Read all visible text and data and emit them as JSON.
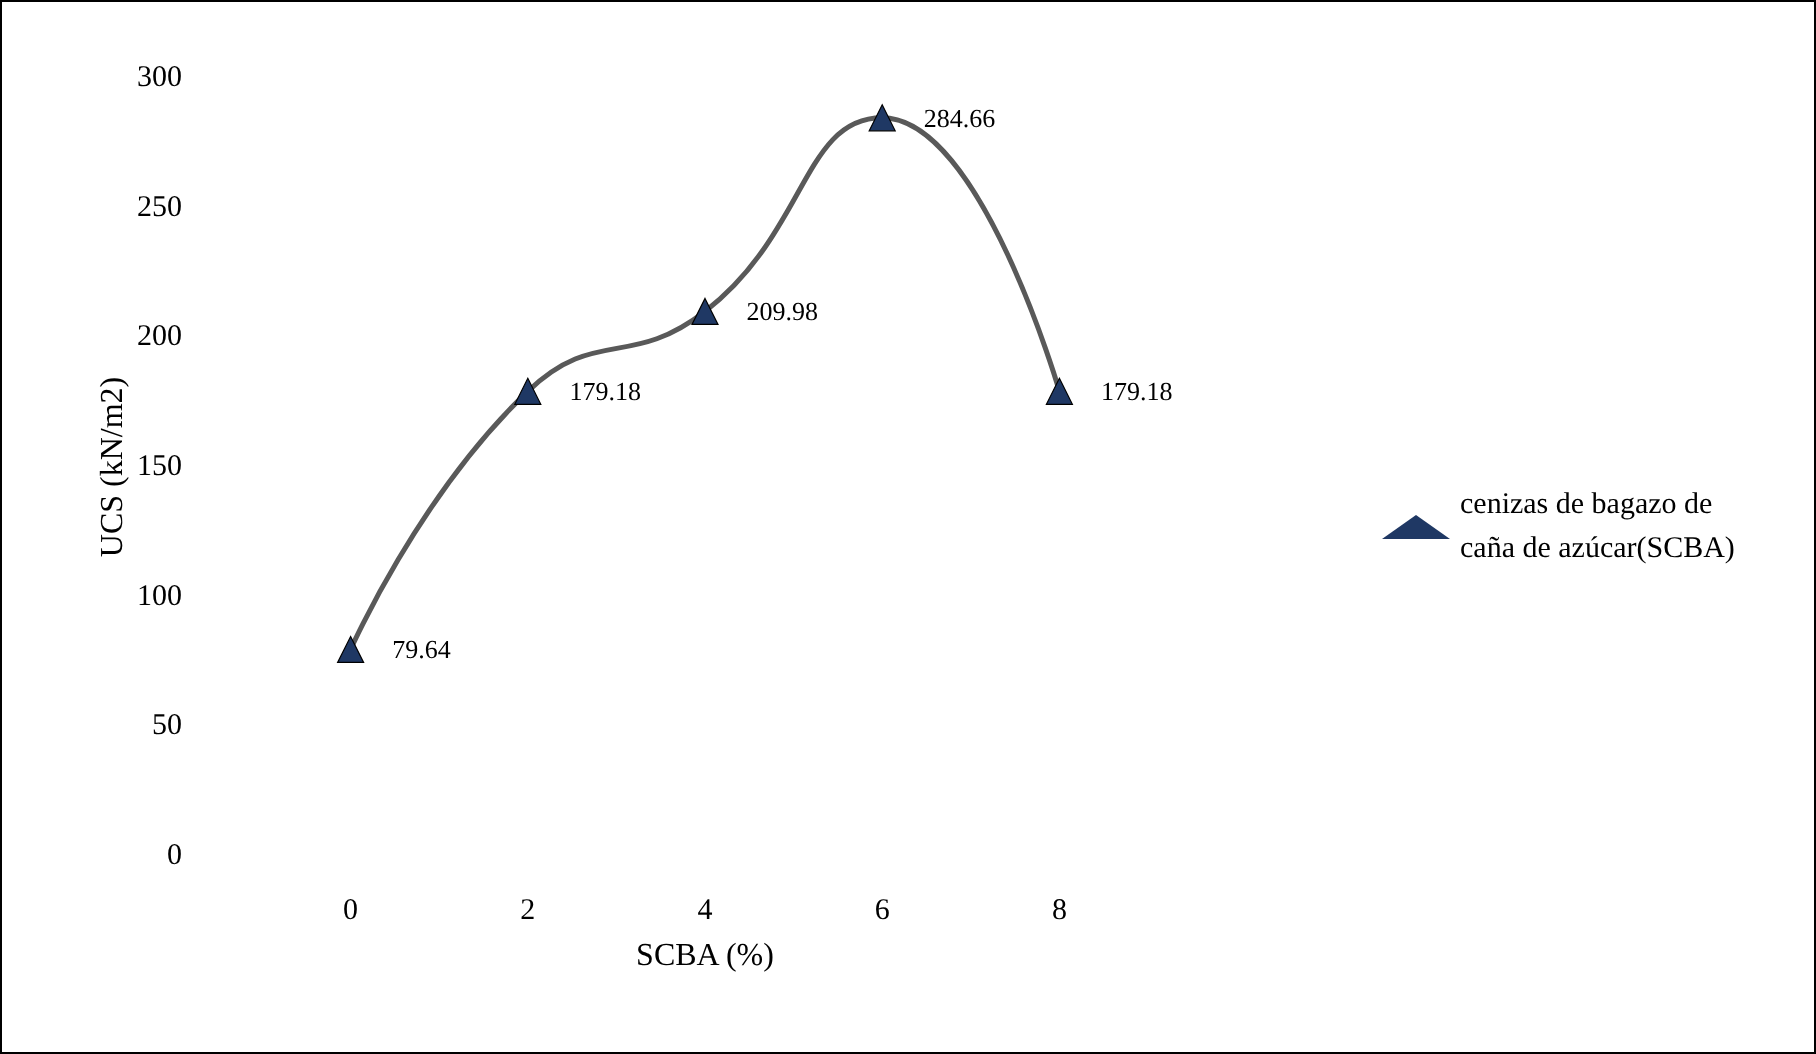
{
  "chart_data": {
    "type": "line",
    "xlabel": "SCBA (%)",
    "ylabel": "UCS (kN/m2)",
    "categories": [
      "0",
      "2",
      "4",
      "6",
      "8"
    ],
    "series": [
      {
        "name": "cenizas de bagazo de caña de azúcar(SCBA)",
        "color": "#595959",
        "colors": [
          "#1f3864",
          "#1f3864",
          "#1f3864",
          "#1f3864",
          "#1f3864"
        ],
        "values": [
          79.64,
          179.18,
          209.98,
          284.66,
          179.18
        ]
      }
    ],
    "ylim": [
      0,
      300
    ],
    "yticks": [
      0,
      50,
      100,
      150,
      200,
      250,
      300
    ],
    "grid": false,
    "legend": "right",
    "marker": "triangle",
    "line_style": "solid",
    "data_labels": true
  }
}
